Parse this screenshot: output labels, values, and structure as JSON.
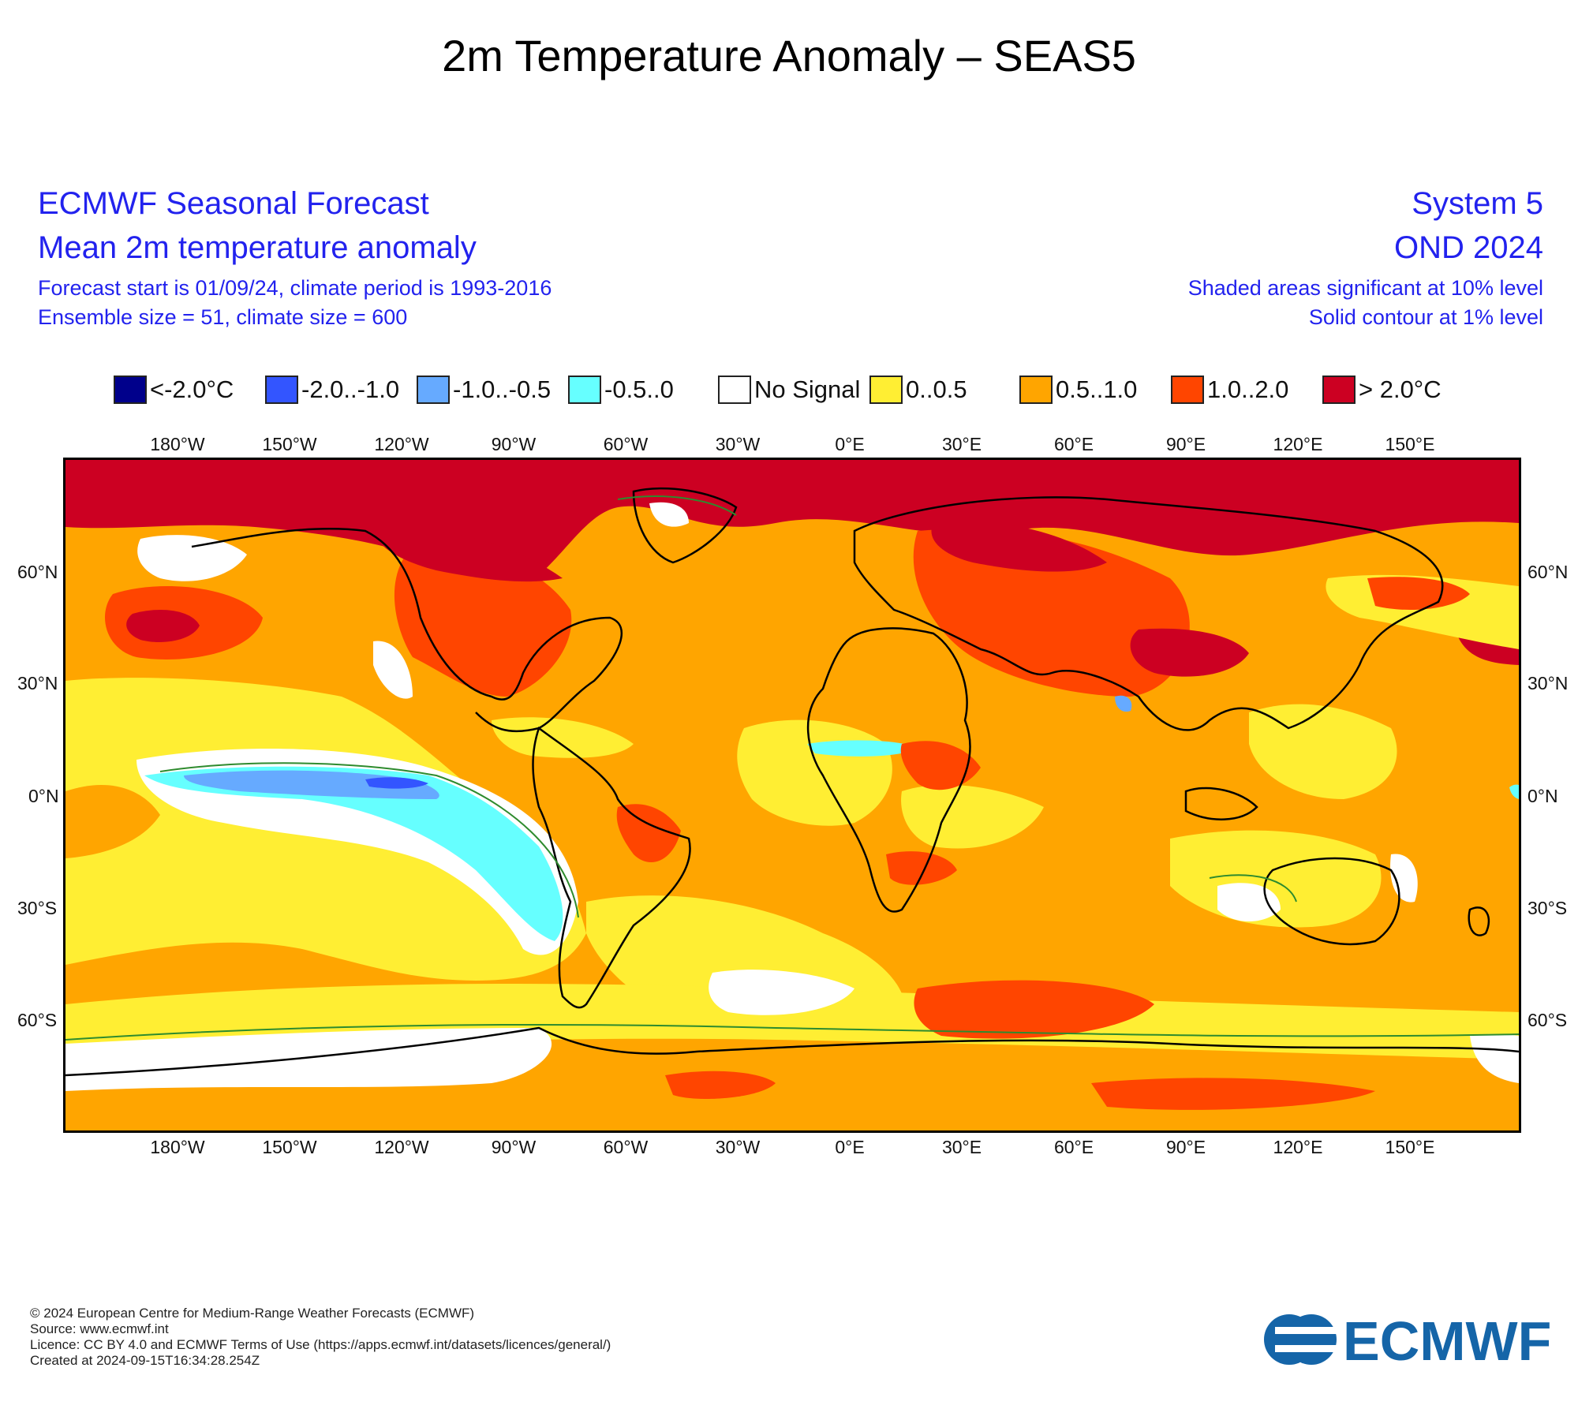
{
  "page_title": "2m Temperature Anomaly – SEAS5",
  "header": {
    "left_title": "ECMWF Seasonal Forecast",
    "left_subtitle": "Mean 2m temperature anomaly",
    "left_line1": "Forecast start is 01/09/24, climate period is 1993-2016",
    "left_line2": "Ensemble size = 51, climate size = 600",
    "right_title": "System 5",
    "right_subtitle": "OND 2024",
    "right_line1": "Shaded areas significant at 10% level",
    "right_line2": "Solid contour at 1% level"
  },
  "legend": [
    {
      "label": "<-2.0°C",
      "color": "#00008b"
    },
    {
      "label": "-2.0..-1.0",
      "color": "#3355ff"
    },
    {
      "label": "-1.0..-0.5",
      "color": "#66aaff"
    },
    {
      "label": "-0.5..0",
      "color": "#66ffff"
    },
    {
      "label": "No Signal",
      "color": "#ffffff"
    },
    {
      "label": "0..0.5",
      "color": "#ffee33"
    },
    {
      "label": "0.5..1.0",
      "color": "#ffa500"
    },
    {
      "label": "1.0..2.0",
      "color": "#ff4500"
    },
    {
      "label": "> 2.0°C",
      "color": "#cc0022"
    }
  ],
  "map": {
    "longitude_labels": [
      "180°W",
      "150°W",
      "120°W",
      "90°W",
      "60°W",
      "30°W",
      "0°E",
      "30°E",
      "60°E",
      "90°E",
      "120°E",
      "150°E"
    ],
    "latitude_labels": [
      "60°N",
      "30°N",
      "0°N",
      "30°S",
      "60°S"
    ]
  },
  "footer": {
    "line1": "© 2024 European Centre for Medium-Range Weather Forecasts (ECMWF)",
    "line2": "Source: www.ecmwf.int",
    "line3": "Licence: CC BY 4.0 and ECMWF Terms of Use (https://apps.ecmwf.int/datasets/licences/general/)",
    "line4": "Created at 2024-09-15T16:34:28.254Z"
  },
  "logo": {
    "text": "ECMWF",
    "color": "#1565a8"
  }
}
